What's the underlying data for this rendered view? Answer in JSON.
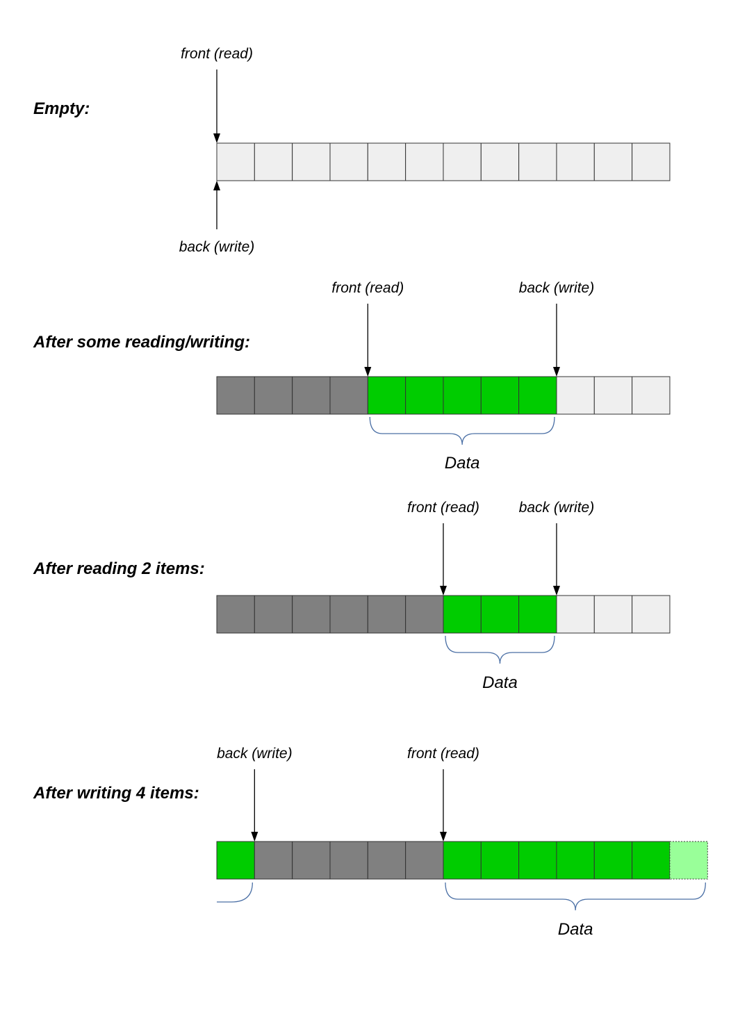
{
  "colors": {
    "empty": "#efefef",
    "consumed": "#808080",
    "data": "#00cc00",
    "pending": "#99ff99",
    "brace": "#4a6fa5"
  },
  "sections": [
    {
      "heading": "Empty:",
      "cells": [
        "empty",
        "empty",
        "empty",
        "empty",
        "empty",
        "empty",
        "empty",
        "empty",
        "empty",
        "empty",
        "empty",
        "empty"
      ],
      "pointers": [
        {
          "label": "front (read)",
          "side": "top",
          "cell_index": 0
        },
        {
          "label": "back (write)",
          "side": "bottom",
          "cell_index": 0
        }
      ],
      "braces": []
    },
    {
      "heading": "After some reading/writing:",
      "cells": [
        "consumed",
        "consumed",
        "consumed",
        "consumed",
        "data",
        "data",
        "data",
        "data",
        "data",
        "empty",
        "empty",
        "empty"
      ],
      "pointers": [
        {
          "label": "front (read)",
          "side": "top",
          "cell_index": 4
        },
        {
          "label": "back (write)",
          "side": "top",
          "cell_index": 9
        }
      ],
      "braces": [
        {
          "label": "Data",
          "from_cell": 4,
          "to_cell": 9
        }
      ]
    },
    {
      "heading": "After reading 2 items:",
      "cells": [
        "consumed",
        "consumed",
        "consumed",
        "consumed",
        "consumed",
        "consumed",
        "data",
        "data",
        "data",
        "empty",
        "empty",
        "empty"
      ],
      "pointers": [
        {
          "label": "front (read)",
          "side": "top",
          "cell_index": 6
        },
        {
          "label": "back (write)",
          "side": "top",
          "cell_index": 9
        }
      ],
      "braces": [
        {
          "label": "Data",
          "from_cell": 6,
          "to_cell": 9
        }
      ]
    },
    {
      "heading": "After writing 4 items:",
      "cells": [
        "data",
        "consumed",
        "consumed",
        "consumed",
        "consumed",
        "consumed",
        "data",
        "data",
        "data",
        "data",
        "data",
        "data",
        "pending"
      ],
      "pointers": [
        {
          "label": "back (write)",
          "side": "top",
          "cell_index": 1
        },
        {
          "label": "front (read)",
          "side": "top",
          "cell_index": 6
        }
      ],
      "braces": [
        {
          "label": "Data",
          "from_cell": 6,
          "to_cell": 13
        },
        {
          "label": "",
          "from_cell": 0,
          "to_cell": 1,
          "partial": true
        }
      ]
    }
  ]
}
